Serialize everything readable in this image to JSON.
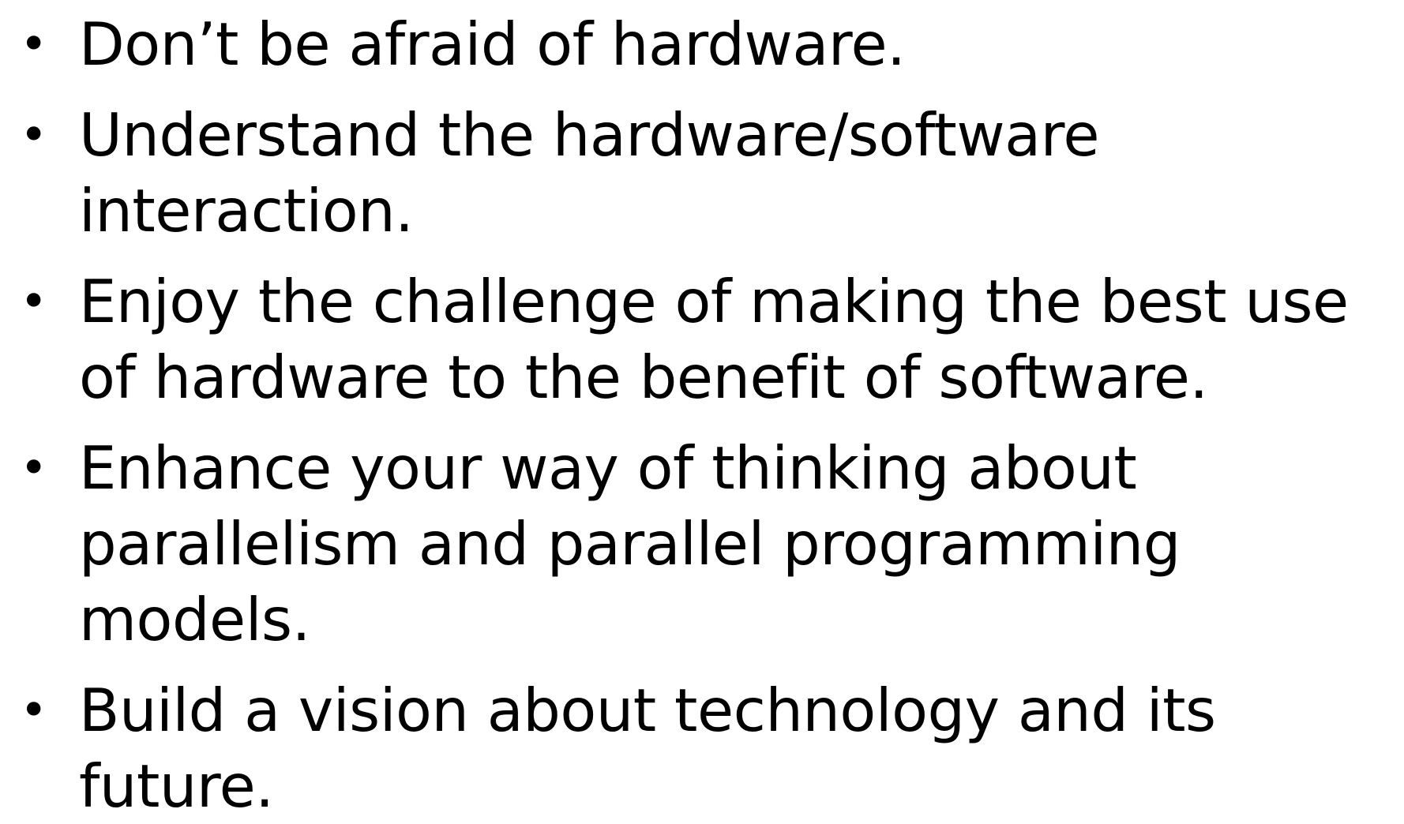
{
  "bullet_symbol": "•",
  "bullets": [
    {
      "line1": "Don’t be afraid of hardware.",
      "line2": ""
    },
    {
      "line1": "Understand the hardware/software",
      "line2": "interaction."
    },
    {
      "line1": "Enjoy the challenge of making the best use",
      "line2": "of hardware to the benefit of software."
    },
    {
      "line1": "Enhance your way of thinking about",
      "line2": "parallelism and parallel programming models."
    },
    {
      "line1": "Build a vision about technology and its",
      "line2": "future."
    }
  ]
}
